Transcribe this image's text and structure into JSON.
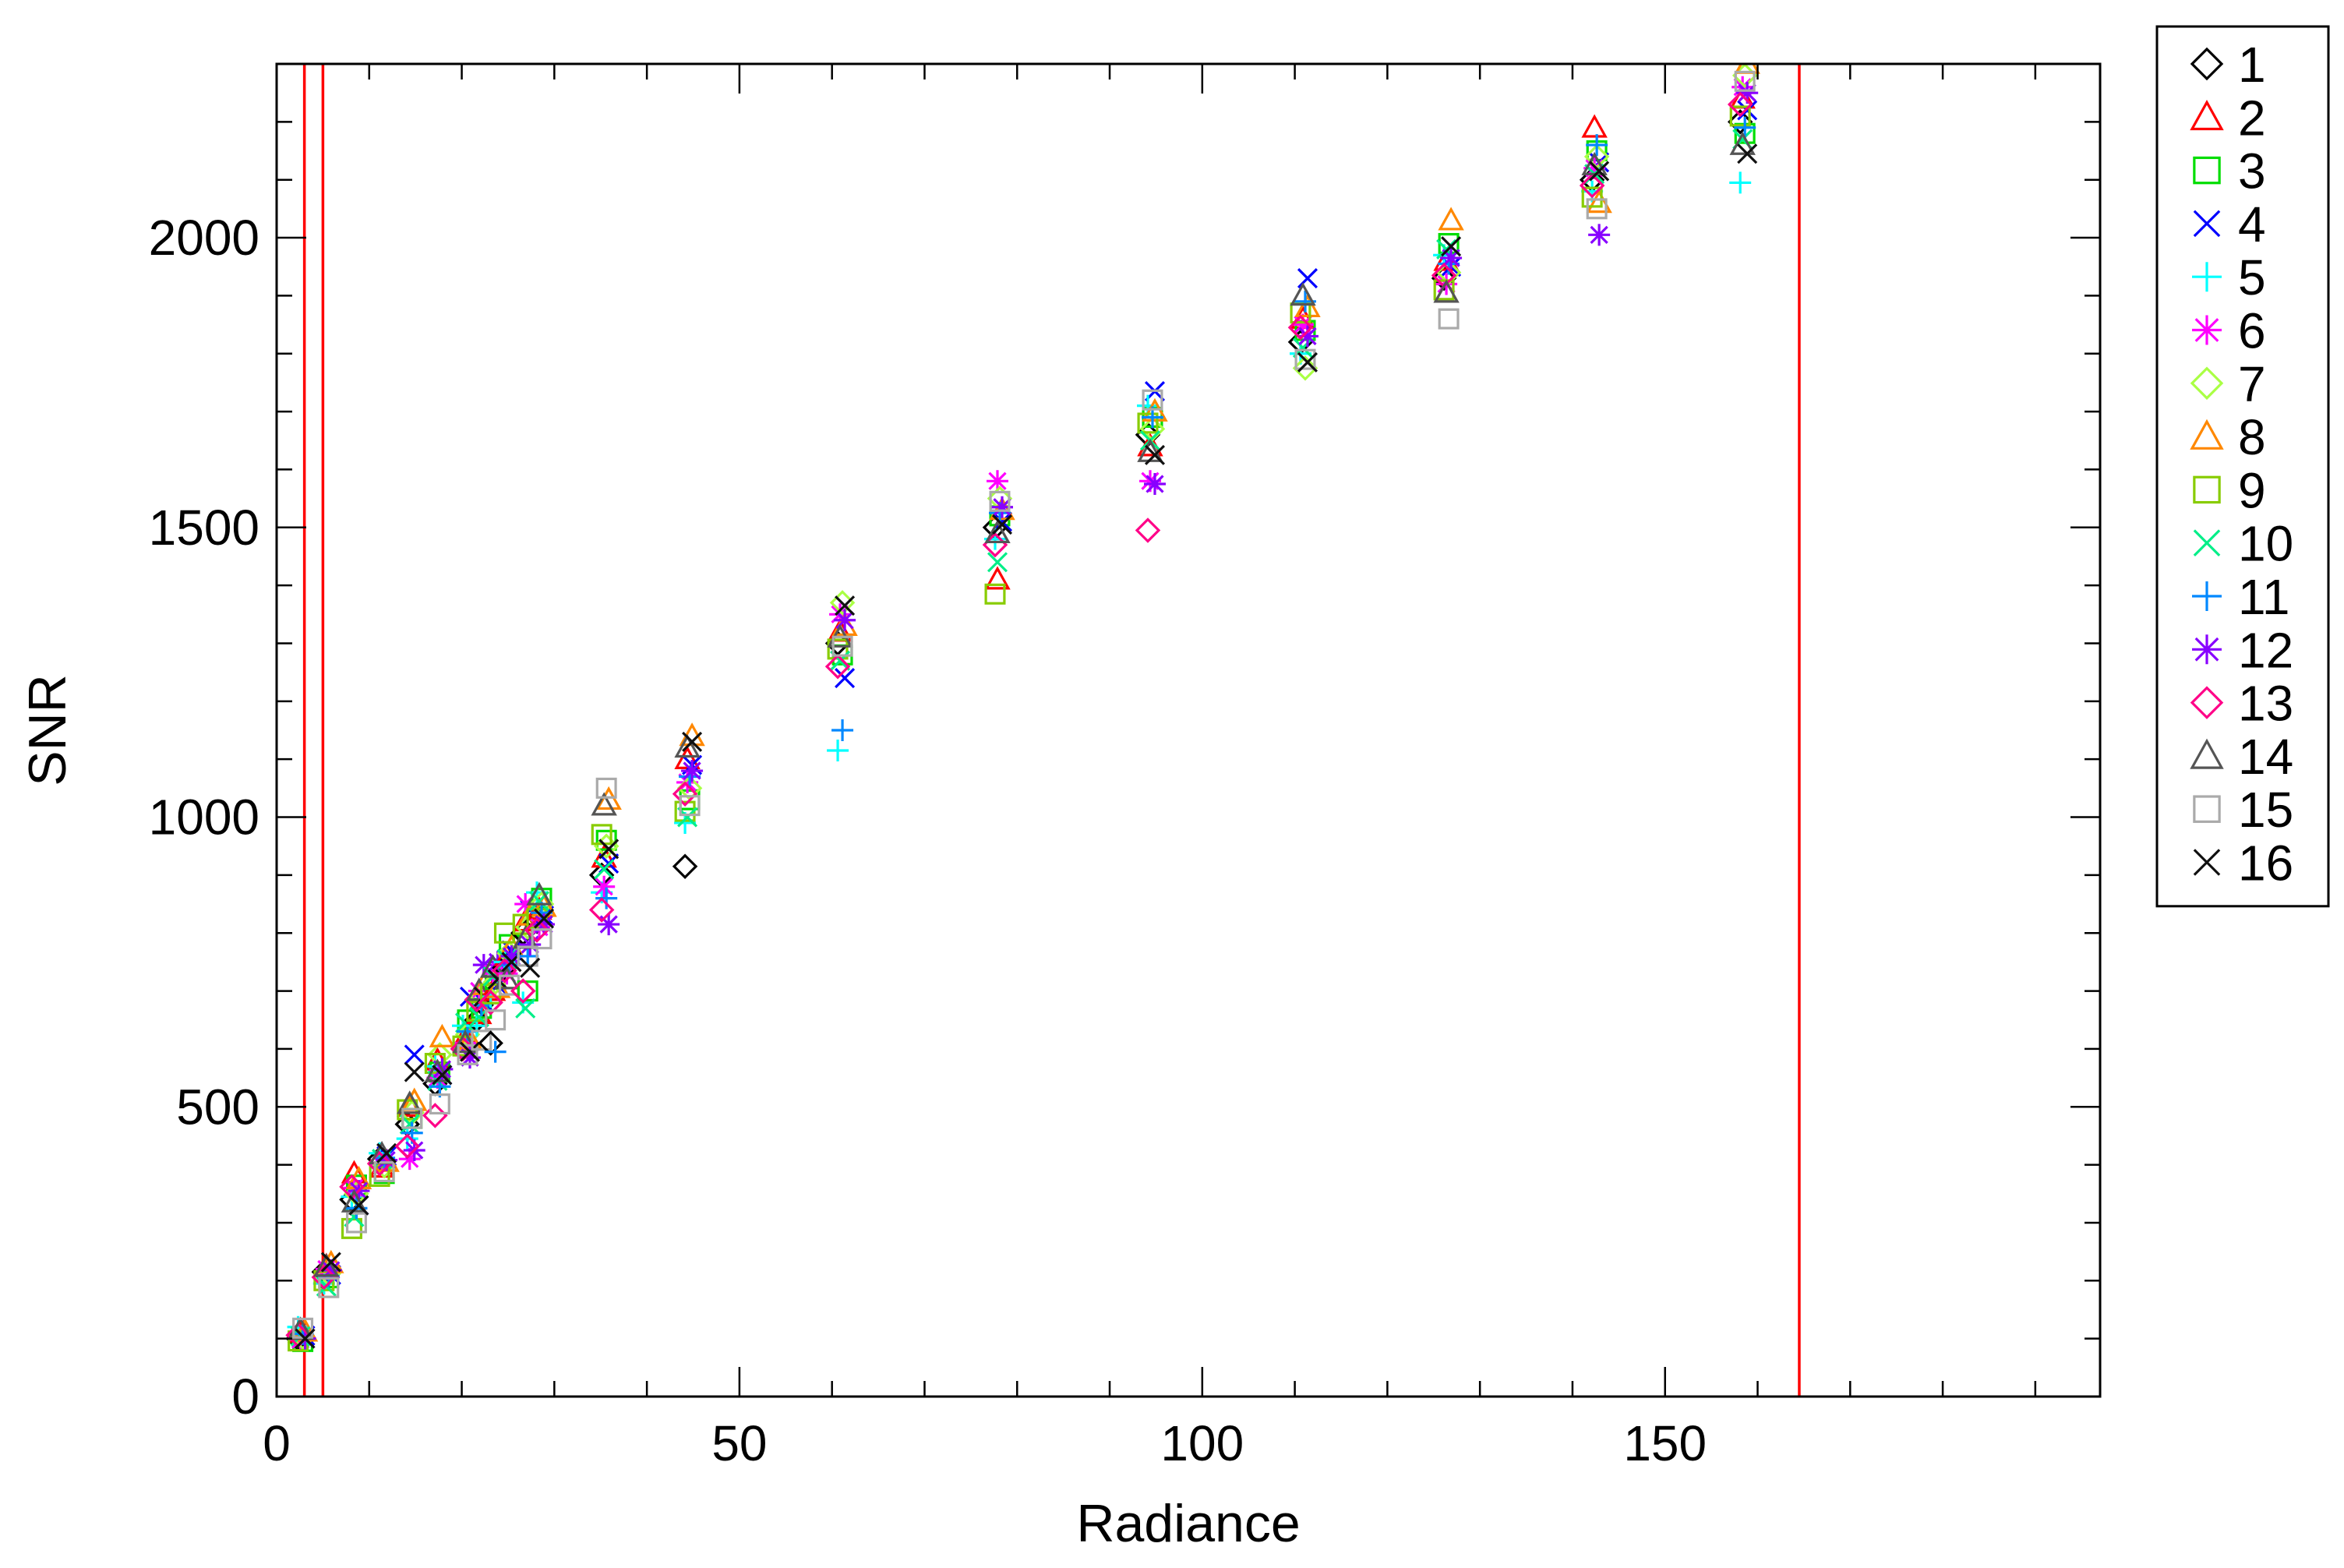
{
  "chart_data": {
    "type": "scatter",
    "title": "",
    "xlabel": "Radiance",
    "ylabel": "SNR",
    "xlim": [
      0,
      197
    ],
    "ylim": [
      0,
      2300
    ],
    "x_ticks": [
      0,
      50,
      100,
      150
    ],
    "y_ticks": [
      0,
      500,
      1000,
      1500,
      2000
    ],
    "grid": false,
    "legend_position": "outside-right",
    "vertical_lines": {
      "color": "#ff0000",
      "x": [
        3.0,
        5.0,
        164.5
      ]
    },
    "series": [
      {
        "name": "1",
        "marker": "diamond",
        "color": "#000000"
      },
      {
        "name": "2",
        "marker": "triangle",
        "color": "#ff0000"
      },
      {
        "name": "3",
        "marker": "square",
        "color": "#00dd00"
      },
      {
        "name": "4",
        "marker": "x",
        "color": "#0000ff"
      },
      {
        "name": "5",
        "marker": "plus",
        "color": "#00ffff"
      },
      {
        "name": "6",
        "marker": "asterisk",
        "color": "#ff00ff"
      },
      {
        "name": "7",
        "marker": "diamond",
        "color": "#aaff44"
      },
      {
        "name": "8",
        "marker": "triangle",
        "color": "#ff8800"
      },
      {
        "name": "9",
        "marker": "square",
        "color": "#88cc00"
      },
      {
        "name": "10",
        "marker": "x",
        "color": "#00ee88"
      },
      {
        "name": "11",
        "marker": "plus",
        "color": "#0088ff"
      },
      {
        "name": "12",
        "marker": "asterisk",
        "color": "#8800ff"
      },
      {
        "name": "13",
        "marker": "diamond",
        "color": "#ff0088"
      },
      {
        "name": "14",
        "marker": "triangle",
        "color": "#555555"
      },
      {
        "name": "15",
        "marker": "square",
        "color": "#aaaaaa"
      },
      {
        "name": "16",
        "marker": "x",
        "color": "#111111"
      }
    ],
    "groups": [
      {
        "x": 2.7,
        "y": [
          100,
          110,
          95,
          105,
          120,
          98,
          102,
          112,
          96,
          104,
          108,
          100,
          106,
          115,
          118,
          100
        ]
      },
      {
        "x": 5.5,
        "y": [
          215,
          225,
          205,
          210,
          195,
          220,
          212,
          230,
          200,
          190,
          208,
          218,
          206,
          224,
          188,
          232
        ]
      },
      {
        "x": 8.5,
        "y": [
          340,
          385,
          365,
          330,
          345,
          360,
          350,
          375,
          290,
          310,
          325,
          355,
          362,
          335,
          300,
          330
        ]
      },
      {
        "x": 11.5,
        "y": [
          410,
          395,
          385,
          415,
          420,
          400,
          398,
          405,
          380,
          410,
          412,
          408,
          402,
          418,
          388,
          420
        ]
      },
      {
        "x": 14.5,
        "y": [
          470,
          500,
          480,
          590,
          445,
          410,
          490,
          510,
          495,
          470,
          455,
          425,
          432,
          505,
          480,
          560
        ]
      },
      {
        "x": 17.5,
        "y": [
          540,
          580,
          560,
          555,
          570,
          550,
          590,
          620,
          575,
          545,
          535,
          565,
          485,
          560,
          505,
          555
        ]
      },
      {
        "x": 20.5,
        "y": [
          600,
          620,
          650,
          690,
          640,
          610,
          625,
          615,
          605,
          645,
          630,
          585,
          600,
          610,
          590,
          595
        ]
      },
      {
        "x": 22.0,
        "y": [
          650,
          660,
          670,
          680,
          640,
          700,
          690,
          710,
          665,
          655,
          675,
          745,
          685,
          700,
          615,
          690
        ]
      },
      {
        "x": 23.5,
        "y": [
          610,
          700,
          720,
          710,
          690,
          730,
          715,
          705,
          695,
          725,
          595,
          750,
          680,
          740,
          650,
          720
        ]
      },
      {
        "x": 25.0,
        "y": [
          740,
          760,
          780,
          770,
          750,
          730,
          765,
          775,
          800,
          755,
          745,
          760,
          735,
          720,
          710,
          750
        ]
      },
      {
        "x": 27.0,
        "y": [
          800,
          820,
          700,
          840,
          680,
          850,
          810,
          830,
          815,
          670,
          760,
          780,
          700,
          790,
          760,
          740
        ]
      },
      {
        "x": 28.5,
        "y": [
          820,
          840,
          860,
          830,
          870,
          810,
          850,
          845,
          825,
          855,
          835,
          815,
          805,
          865,
          790,
          825
        ]
      },
      {
        "x": 35.5,
        "y": [
          900,
          930,
          960,
          920,
          870,
          880,
          950,
          1030,
          970,
          910,
          860,
          815,
          840,
          1020,
          1050,
          945
        ]
      },
      {
        "x": 44.5,
        "y": [
          915,
          1100,
          1030,
          1090,
          990,
          1060,
          1050,
          1140,
          1010,
          1000,
          1070,
          1080,
          1040,
          1120,
          1020,
          1130
        ]
      },
      {
        "x": 61.0,
        "y": [
          1300,
          1320,
          1280,
          1240,
          1115,
          1350,
          1370,
          1330,
          1290,
          1270,
          1150,
          1340,
          1260,
          1310,
          1295,
          1365
        ]
      },
      {
        "x": 78.0,
        "y": [
          1500,
          1410,
          1520,
          1510,
          1480,
          1580,
          1550,
          1530,
          1385,
          1440,
          1525,
          1535,
          1470,
          1490,
          1545,
          1505
        ]
      },
      {
        "x": 94.5,
        "y": [
          1660,
          1640,
          1690,
          1735,
          1710,
          1580,
          1670,
          1700,
          1680,
          1650,
          1690,
          1575,
          1495,
          1630,
          1720,
          1625
        ]
      },
      {
        "x": 111.0,
        "y": [
          1820,
          1860,
          1840,
          1930,
          1800,
          1850,
          1775,
          1880,
          1870,
          1810,
          1890,
          1830,
          1845,
          1900,
          1790,
          1785
        ]
      },
      {
        "x": 126.5,
        "y": [
          1930,
          1960,
          1990,
          1950,
          1970,
          1920,
          1940,
          2030,
          1910,
          1980,
          1955,
          1965,
          1935,
          1905,
          1860,
          1985
        ]
      },
      {
        "x": 142.5,
        "y": [
          2100,
          2190,
          2150,
          2130,
          2080,
          2120,
          2140,
          2060,
          2070,
          2110,
          2160,
          2005,
          2090,
          2125,
          2050,
          2115
        ]
      },
      {
        "x": 158.5,
        "y": [
          2200,
          2240,
          2180,
          2220,
          2095,
          2260,
          2280,
          2300,
          2210,
          2170,
          2190,
          2250,
          2230,
          2160,
          2270,
          2145
        ]
      }
    ]
  }
}
